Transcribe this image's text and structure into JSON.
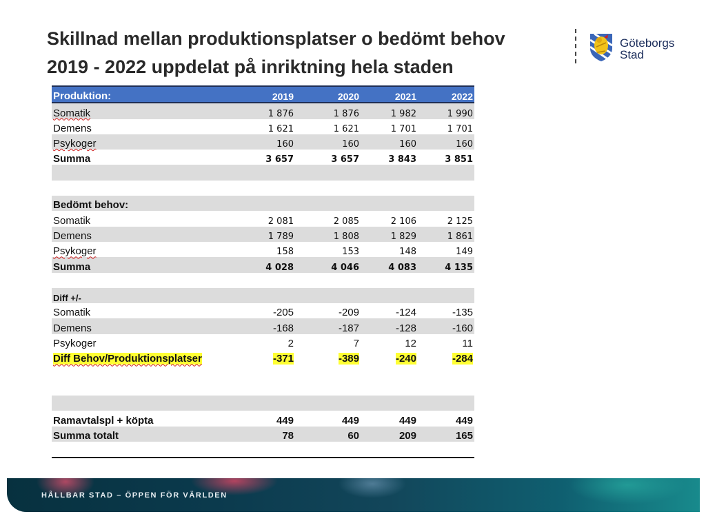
{
  "title": {
    "line1": "Skillnad mellan produktionsplatser o bedömt behov",
    "line2": "2019 - 2022 uppdelat på inriktning hela staden"
  },
  "logo": {
    "line1": "Göteborgs",
    "line2": "Stad",
    "icon": "lion-shield-icon"
  },
  "table": {
    "header": {
      "label": "Produktion:",
      "years": [
        "2019",
        "2020",
        "2021",
        "2022"
      ]
    },
    "production": [
      {
        "label": "Somatik",
        "values": [
          "1 876",
          "1 876",
          "1 982",
          "1 990"
        ]
      },
      {
        "label": "Demens",
        "values": [
          "1 621",
          "1 621",
          "1 701",
          "1 701"
        ]
      },
      {
        "label": "Psykoger",
        "values": [
          "160",
          "160",
          "160",
          "160"
        ]
      },
      {
        "label": "Summa",
        "values": [
          "3 657",
          "3 657",
          "3 843",
          "3 851"
        ]
      }
    ],
    "need_heading": "Bedömt behov:",
    "need": [
      {
        "label": "Somatik",
        "values": [
          "2 081",
          "2 085",
          "2 106",
          "2 125"
        ]
      },
      {
        "label": "Demens",
        "values": [
          "1 789",
          "1 808",
          "1 829",
          "1 861"
        ]
      },
      {
        "label": "Psykoger",
        "values": [
          "158",
          "153",
          "148",
          "149"
        ]
      },
      {
        "label": "Summa",
        "values": [
          "4 028",
          "4 046",
          "4 083",
          "4 135"
        ]
      }
    ],
    "diff_heading": "Diff +/-",
    "diff": [
      {
        "label": "Somatik",
        "values": [
          "-205",
          "-209",
          "-124",
          "-135"
        ]
      },
      {
        "label": "Demens",
        "values": [
          "-168",
          "-187",
          "-128",
          "-160"
        ]
      },
      {
        "label": "Psykoger",
        "values": [
          "2",
          "7",
          "12",
          "11"
        ]
      }
    ],
    "diff_total": {
      "label": "Diff Behov/Produktionsplatser",
      "values": [
        "-371",
        "-389",
        "-240",
        "-284"
      ]
    },
    "framework": {
      "label": "Ramavtalspl + köpta",
      "values": [
        "449",
        "449",
        "449",
        "449"
      ]
    },
    "grand_total": {
      "label": "Summa totalt",
      "values": [
        "78",
        "60",
        "209",
        "165"
      ]
    }
  },
  "footer": {
    "tagline": "HÅLLBAR STAD – ÖPPEN FÖR VÄRLDEN"
  },
  "colors": {
    "header_bg": "#4472c4",
    "row_grey": "#dcdcdc",
    "highlight": "#ffff33",
    "logo_blue": "#1a2c5a"
  }
}
